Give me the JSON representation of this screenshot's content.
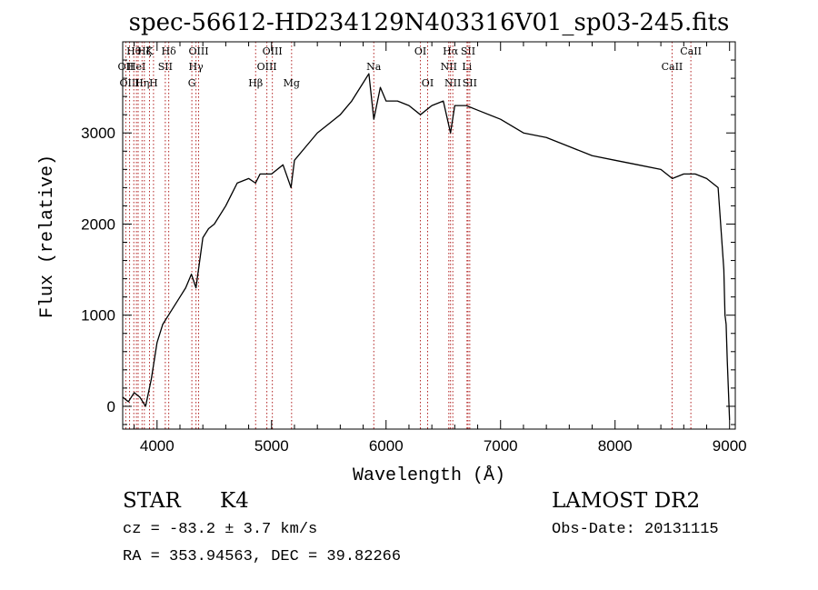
{
  "chart_data": {
    "type": "line",
    "title": "spec-56612-HD234129N403316V01_sp03-245.fits",
    "xlabel": "Wavelength (Å)",
    "ylabel": "Flux (relative)",
    "xlim": [
      3700,
      9050
    ],
    "ylim": [
      -250,
      4000
    ],
    "x_ticks": [
      4000,
      5000,
      6000,
      7000,
      8000,
      9000
    ],
    "y_ticks": [
      0,
      1000,
      2000,
      3000
    ],
    "grid": false,
    "series": [
      {
        "x": [
          3700,
          3750,
          3800,
          3850,
          3900,
          3950,
          4000,
          4050,
          4100,
          4150,
          4200,
          4250,
          4300,
          4340,
          4400,
          4450,
          4500,
          4600,
          4700,
          4800,
          4860,
          4900,
          5000,
          5100,
          5170,
          5200,
          5300,
          5400,
          5500,
          5600,
          5700,
          5800,
          5850,
          5893,
          5950,
          6000,
          6100,
          6200,
          6300,
          6400,
          6500,
          6563,
          6600,
          6700,
          6800,
          7000,
          7200,
          7400,
          7600,
          7800,
          8000,
          8200,
          8400,
          8500,
          8600,
          8700,
          8800,
          8900,
          8950,
          8960,
          8970,
          8980,
          9000
        ],
        "y": [
          100,
          50,
          150,
          100,
          0,
          300,
          700,
          900,
          1000,
          1100,
          1200,
          1300,
          1450,
          1300,
          1850,
          1950,
          2000,
          2200,
          2450,
          2500,
          2450,
          2550,
          2550,
          2650,
          2400,
          2700,
          2850,
          3000,
          3100,
          3200,
          3350,
          3550,
          3650,
          3150,
          3500,
          3350,
          3350,
          3300,
          3200,
          3300,
          3350,
          3000,
          3300,
          3300,
          3250,
          3150,
          3000,
          2950,
          2850,
          2750,
          2700,
          2650,
          2600,
          2500,
          2550,
          2550,
          2500,
          2400,
          1500,
          1000,
          900,
          500,
          -150
        ]
      }
    ],
    "lines": [
      {
        "x": 3727,
        "labels": [
          "OII"
        ],
        "row": 1
      },
      {
        "x": 3760,
        "labels": [
          "OIII"
        ],
        "row": 2
      },
      {
        "x": 3797,
        "labels": [
          "Hθ"
        ],
        "row": 0
      },
      {
        "x": 3820,
        "labels": [
          "HeI"
        ],
        "row": 1
      },
      {
        "x": 3835,
        "labels": [],
        "row": 0
      },
      {
        "x": 3869,
        "labels": [
          "Hη"
        ],
        "row": 2
      },
      {
        "x": 3889,
        "labels": [
          "Hζ"
        ],
        "row": 0
      },
      {
        "x": 3934,
        "labels": [
          "K"
        ],
        "row": 0
      },
      {
        "x": 3969,
        "labels": [
          "H"
        ],
        "row": 2
      },
      {
        "x": 4072,
        "labels": [
          "SII"
        ],
        "row": 1
      },
      {
        "x": 4102,
        "labels": [
          "Hδ"
        ],
        "row": 0
      },
      {
        "x": 4304,
        "labels": [
          "G"
        ],
        "row": 2
      },
      {
        "x": 4340,
        "labels": [
          "Hγ"
        ],
        "row": 1
      },
      {
        "x": 4363,
        "labels": [
          "OIII"
        ],
        "row": 0
      },
      {
        "x": 4861,
        "labels": [
          "Hβ"
        ],
        "row": 2
      },
      {
        "x": 4959,
        "labels": [
          "OIII"
        ],
        "row": 1
      },
      {
        "x": 5007,
        "labels": [
          "OIII"
        ],
        "row": 0
      },
      {
        "x": 5175,
        "labels": [
          "Mg"
        ],
        "row": 2
      },
      {
        "x": 5893,
        "labels": [
          "Na"
        ],
        "row": 1
      },
      {
        "x": 6300,
        "labels": [
          "OI"
        ],
        "row": 0
      },
      {
        "x": 6363,
        "labels": [
          "OI"
        ],
        "row": 2
      },
      {
        "x": 6548,
        "labels": [
          "NII"
        ],
        "row": 1
      },
      {
        "x": 6563,
        "labels": [
          "Hα"
        ],
        "row": 0
      },
      {
        "x": 6583,
        "labels": [
          "NII"
        ],
        "row": 2
      },
      {
        "x": 6707,
        "labels": [
          "Li"
        ],
        "row": 1
      },
      {
        "x": 6716,
        "labels": [
          "SII"
        ],
        "row": 0
      },
      {
        "x": 6731,
        "labels": [
          "SII"
        ],
        "row": 2
      },
      {
        "x": 8498,
        "labels": [
          "CaII"
        ],
        "row": 1
      },
      {
        "x": 8662,
        "labels": [
          "CaII"
        ],
        "row": 0
      }
    ]
  },
  "info": {
    "class": "STAR",
    "subclass": "K4",
    "survey": "LAMOST DR2",
    "cz": "cz = -83.2 ± 3.7 km/s",
    "obs_date": "Obs-Date: 20131115",
    "radec": "RA = 353.94563, DEC =  39.82266"
  }
}
